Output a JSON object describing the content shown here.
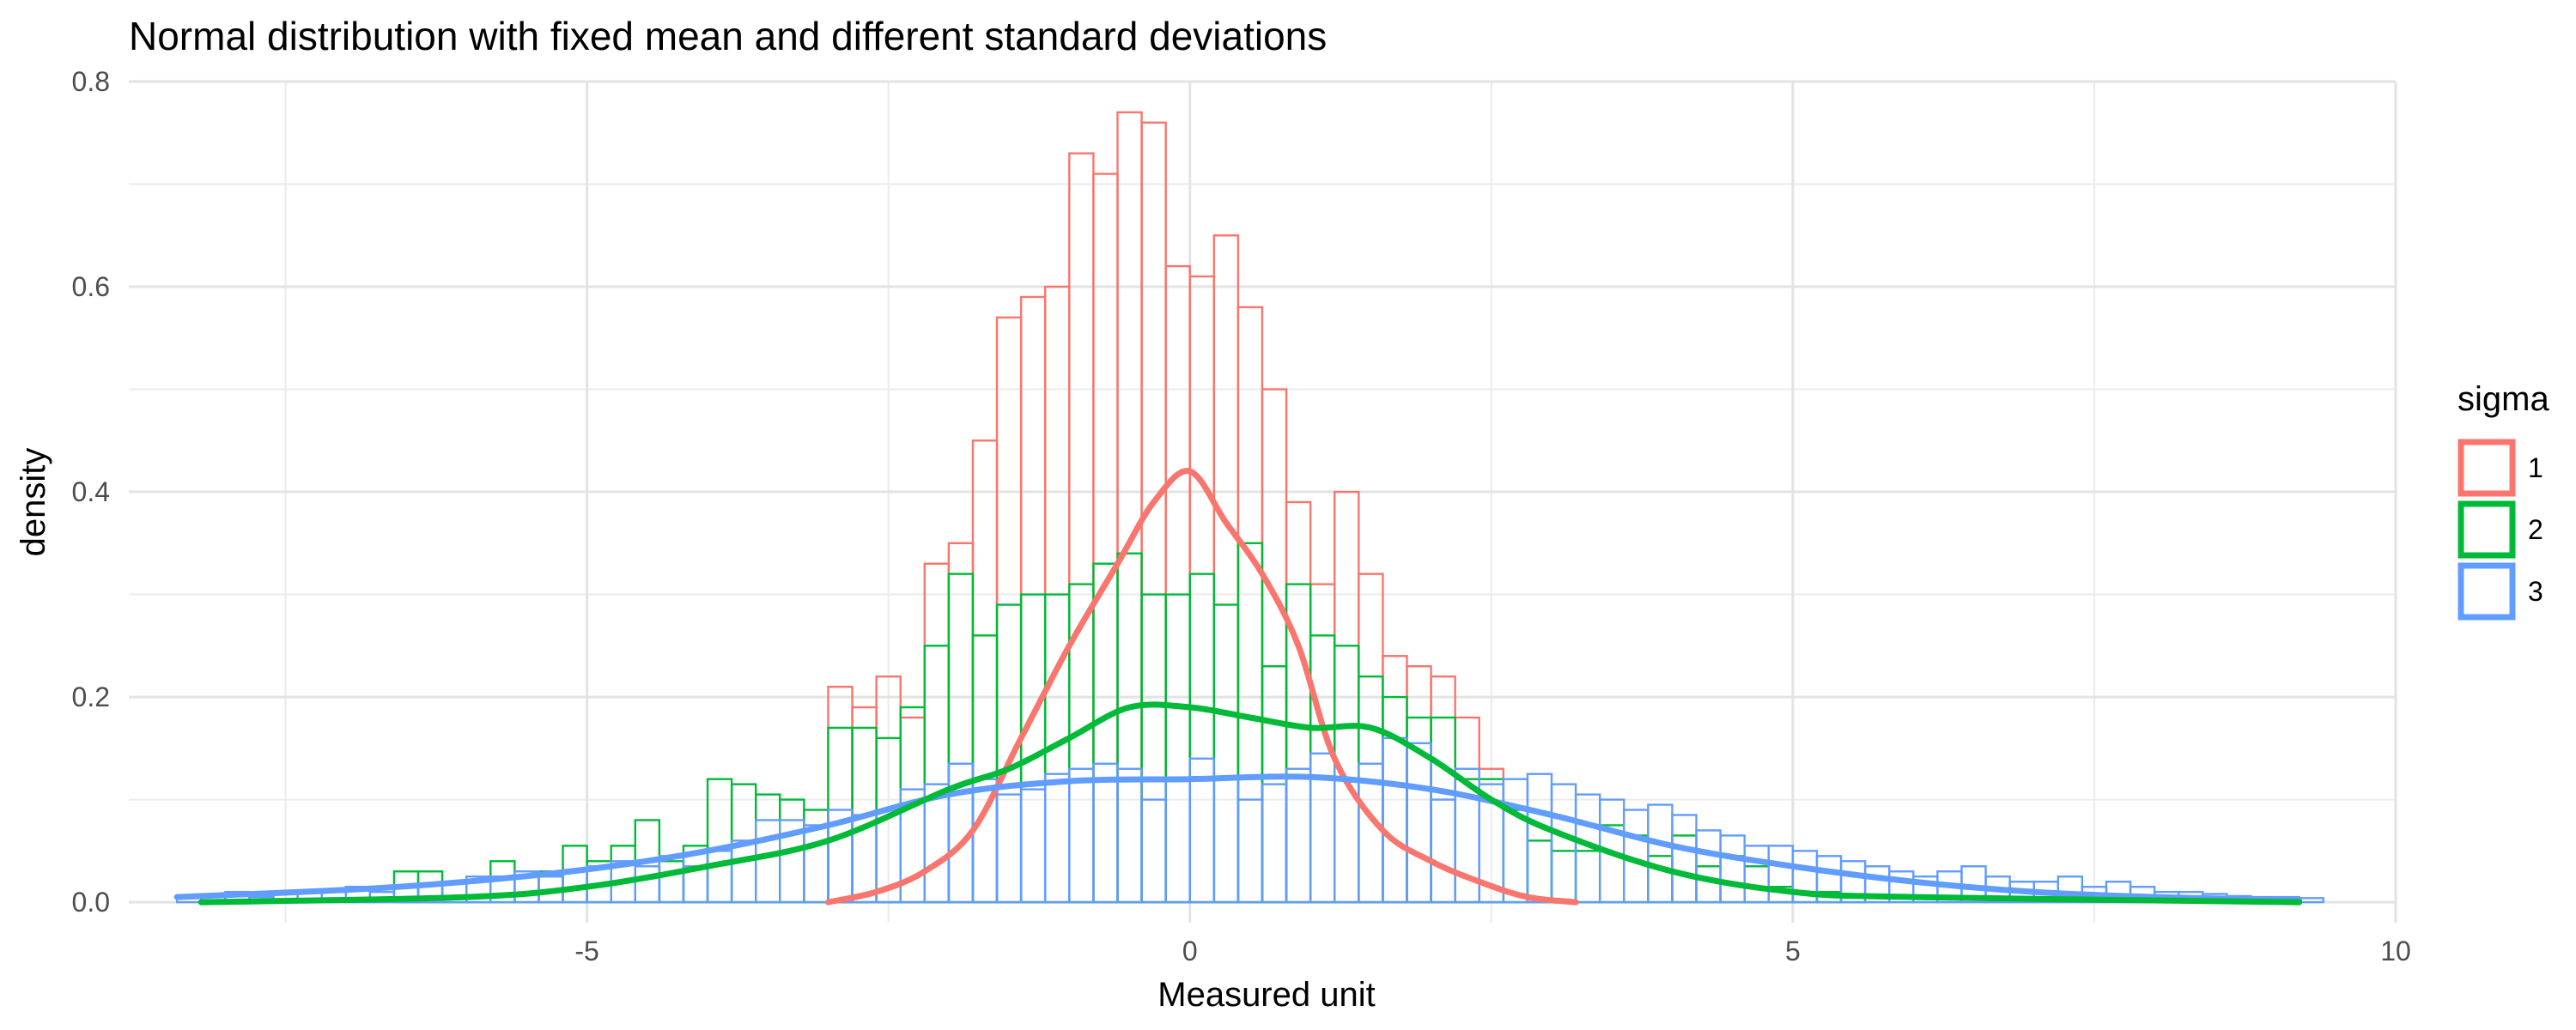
{
  "chart_data": {
    "type": "histogram+density",
    "title": "Normal distribution with fixed mean and different standard deviations",
    "xlabel": "Measured unit",
    "ylabel": "density",
    "xlim": [
      -8.8,
      10.0
    ],
    "ylim": [
      -0.02,
      0.8
    ],
    "x_ticks": [
      -5,
      0,
      5,
      10
    ],
    "x_tick_labels": [
      "-5",
      "0",
      "5",
      "10"
    ],
    "x_minor_ticks": [
      -7.5,
      -2.5,
      2.5,
      7.5
    ],
    "y_ticks": [
      0.0,
      0.2,
      0.4,
      0.6,
      0.8
    ],
    "y_tick_labels": [
      "0.0",
      "0.2",
      "0.4",
      "0.6",
      "0.8"
    ],
    "y_minor_ticks": [
      0.1,
      0.3,
      0.5,
      0.7
    ],
    "grid": true,
    "legend": {
      "title": "sigma",
      "position": "right",
      "entries": [
        {
          "label": "1",
          "color": "#f8766d"
        },
        {
          "label": "2",
          "color": "#00ba38"
        },
        {
          "label": "3",
          "color": "#619cff"
        }
      ]
    },
    "bin_width": 0.2,
    "series": [
      {
        "name": "1",
        "color": "#f8766d",
        "histogram": {
          "bin_start": -3.0,
          "values": [
            0.21,
            0.19,
            0.22,
            0.18,
            0.33,
            0.35,
            0.45,
            0.57,
            0.59,
            0.6,
            0.73,
            0.71,
            0.77,
            0.76,
            0.62,
            0.61,
            0.65,
            0.58,
            0.5,
            0.39,
            0.31,
            0.4,
            0.32,
            0.24,
            0.23,
            0.22,
            0.18,
            0.13
          ]
        },
        "density": {
          "x": [
            -3.0,
            -2.6,
            -2.2,
            -1.8,
            -1.4,
            -1.0,
            -0.6,
            -0.3,
            0.0,
            0.3,
            0.6,
            0.9,
            1.2,
            1.6,
            2.0,
            2.4,
            2.8,
            3.2
          ],
          "y": [
            0.0,
            0.01,
            0.03,
            0.07,
            0.16,
            0.25,
            0.33,
            0.39,
            0.42,
            0.37,
            0.32,
            0.25,
            0.14,
            0.07,
            0.04,
            0.02,
            0.005,
            0.0
          ]
        }
      },
      {
        "name": "2",
        "color": "#00ba38",
        "histogram": {
          "bin_start": -6.6,
          "values": [
            0.03,
            0.03,
            0.02,
            0.02,
            0.04,
            0.03,
            0.03,
            0.055,
            0.04,
            0.055,
            0.08,
            0.04,
            0.055,
            0.12,
            0.115,
            0.105,
            0.1,
            0.09,
            0.17,
            0.17,
            0.16,
            0.19,
            0.25,
            0.32,
            0.26,
            0.29,
            0.3,
            0.3,
            0.31,
            0.33,
            0.34,
            0.3,
            0.3,
            0.32,
            0.29,
            0.35,
            0.23,
            0.31,
            0.26,
            0.25,
            0.22,
            0.2,
            0.18,
            0.18,
            0.12,
            0.12,
            0.09,
            0.06,
            0.05,
            0.05,
            0.075,
            0.065,
            0.045,
            0.065,
            0.035,
            0.045,
            0.035,
            0.015,
            0.01,
            0.01,
            0.005
          ]
        },
        "density": {
          "x": [
            -8.2,
            -6.0,
            -5.0,
            -4.0,
            -3.0,
            -2.0,
            -1.5,
            -1.0,
            -0.5,
            0.0,
            0.5,
            1.0,
            1.5,
            2.0,
            2.5,
            3.0,
            4.0,
            5.0,
            6.0,
            9.2
          ],
          "y": [
            0.0,
            0.005,
            0.015,
            0.035,
            0.06,
            0.11,
            0.13,
            0.16,
            0.19,
            0.19,
            0.18,
            0.17,
            0.17,
            0.14,
            0.1,
            0.07,
            0.03,
            0.01,
            0.005,
            0.0
          ]
        }
      },
      {
        "name": "3",
        "color": "#619cff",
        "histogram": {
          "bin_start": -8.4,
          "values": [
            0.005,
            0.005,
            0.01,
            0.005,
            0.008,
            0.01,
            0.012,
            0.015,
            0.01,
            0.015,
            0.018,
            0.02,
            0.025,
            0.025,
            0.03,
            0.025,
            0.03,
            0.035,
            0.04,
            0.035,
            0.045,
            0.035,
            0.05,
            0.06,
            0.08,
            0.08,
            0.075,
            0.09,
            0.085,
            0.09,
            0.11,
            0.115,
            0.135,
            0.12,
            0.105,
            0.11,
            0.125,
            0.13,
            0.135,
            0.13,
            0.1,
            0.12,
            0.14,
            0.12,
            0.1,
            0.115,
            0.13,
            0.145,
            0.12,
            0.135,
            0.16,
            0.155,
            0.1,
            0.13,
            0.115,
            0.12,
            0.125,
            0.115,
            0.105,
            0.1,
            0.09,
            0.095,
            0.085,
            0.07,
            0.065,
            0.055,
            0.055,
            0.05,
            0.045,
            0.04,
            0.035,
            0.03,
            0.025,
            0.03,
            0.035,
            0.025,
            0.02,
            0.02,
            0.025,
            0.015,
            0.02,
            0.015,
            0.01,
            0.01,
            0.008,
            0.006,
            0.005,
            0.005,
            0.004
          ]
        },
        "density": {
          "x": [
            -8.4,
            -7.0,
            -6.0,
            -5.0,
            -4.0,
            -3.0,
            -2.0,
            -1.0,
            0.0,
            1.0,
            2.0,
            3.0,
            4.0,
            5.0,
            6.0,
            7.0,
            8.0,
            9.2
          ],
          "y": [
            0.005,
            0.012,
            0.02,
            0.032,
            0.05,
            0.075,
            0.105,
            0.118,
            0.12,
            0.122,
            0.11,
            0.085,
            0.055,
            0.035,
            0.02,
            0.01,
            0.005,
            0.002
          ]
        }
      }
    ]
  }
}
